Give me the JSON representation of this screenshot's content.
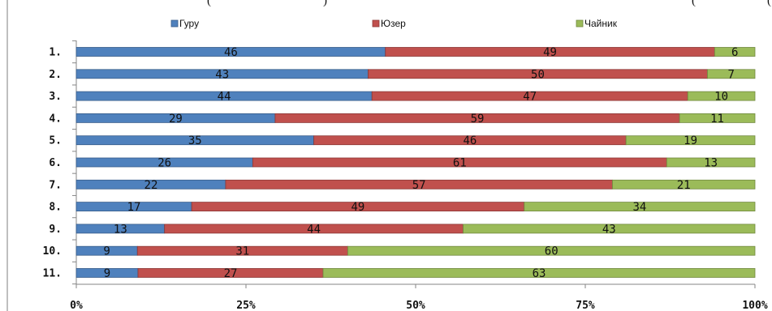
{
  "header_fragments": [
    "(",
    ")",
    "(",
    "("
  ],
  "chart_data": {
    "type": "bar",
    "stacked": "percent",
    "orientation": "horizontal",
    "categories": [
      "1.",
      "2.",
      "3.",
      "4.",
      "5.",
      "6.",
      "7.",
      "8.",
      "9.",
      "10.",
      "11."
    ],
    "series": [
      {
        "name": "Гуру",
        "color": "#4f81bd",
        "values": [
          46,
          43,
          44,
          29,
          35,
          26,
          22,
          17,
          13,
          9,
          9
        ]
      },
      {
        "name": "Юзер",
        "color": "#c0504d",
        "values": [
          49,
          50,
          47,
          59,
          46,
          61,
          57,
          49,
          44,
          31,
          27
        ]
      },
      {
        "name": "Чайник",
        "color": "#9bbb59",
        "values": [
          6,
          7,
          10,
          11,
          19,
          13,
          21,
          34,
          43,
          60,
          63
        ]
      }
    ],
    "xticks": [
      "0%",
      "25%",
      "50%",
      "75%",
      "100%"
    ],
    "xlim": [
      0,
      100
    ],
    "legend": "top",
    "grid": false
  }
}
